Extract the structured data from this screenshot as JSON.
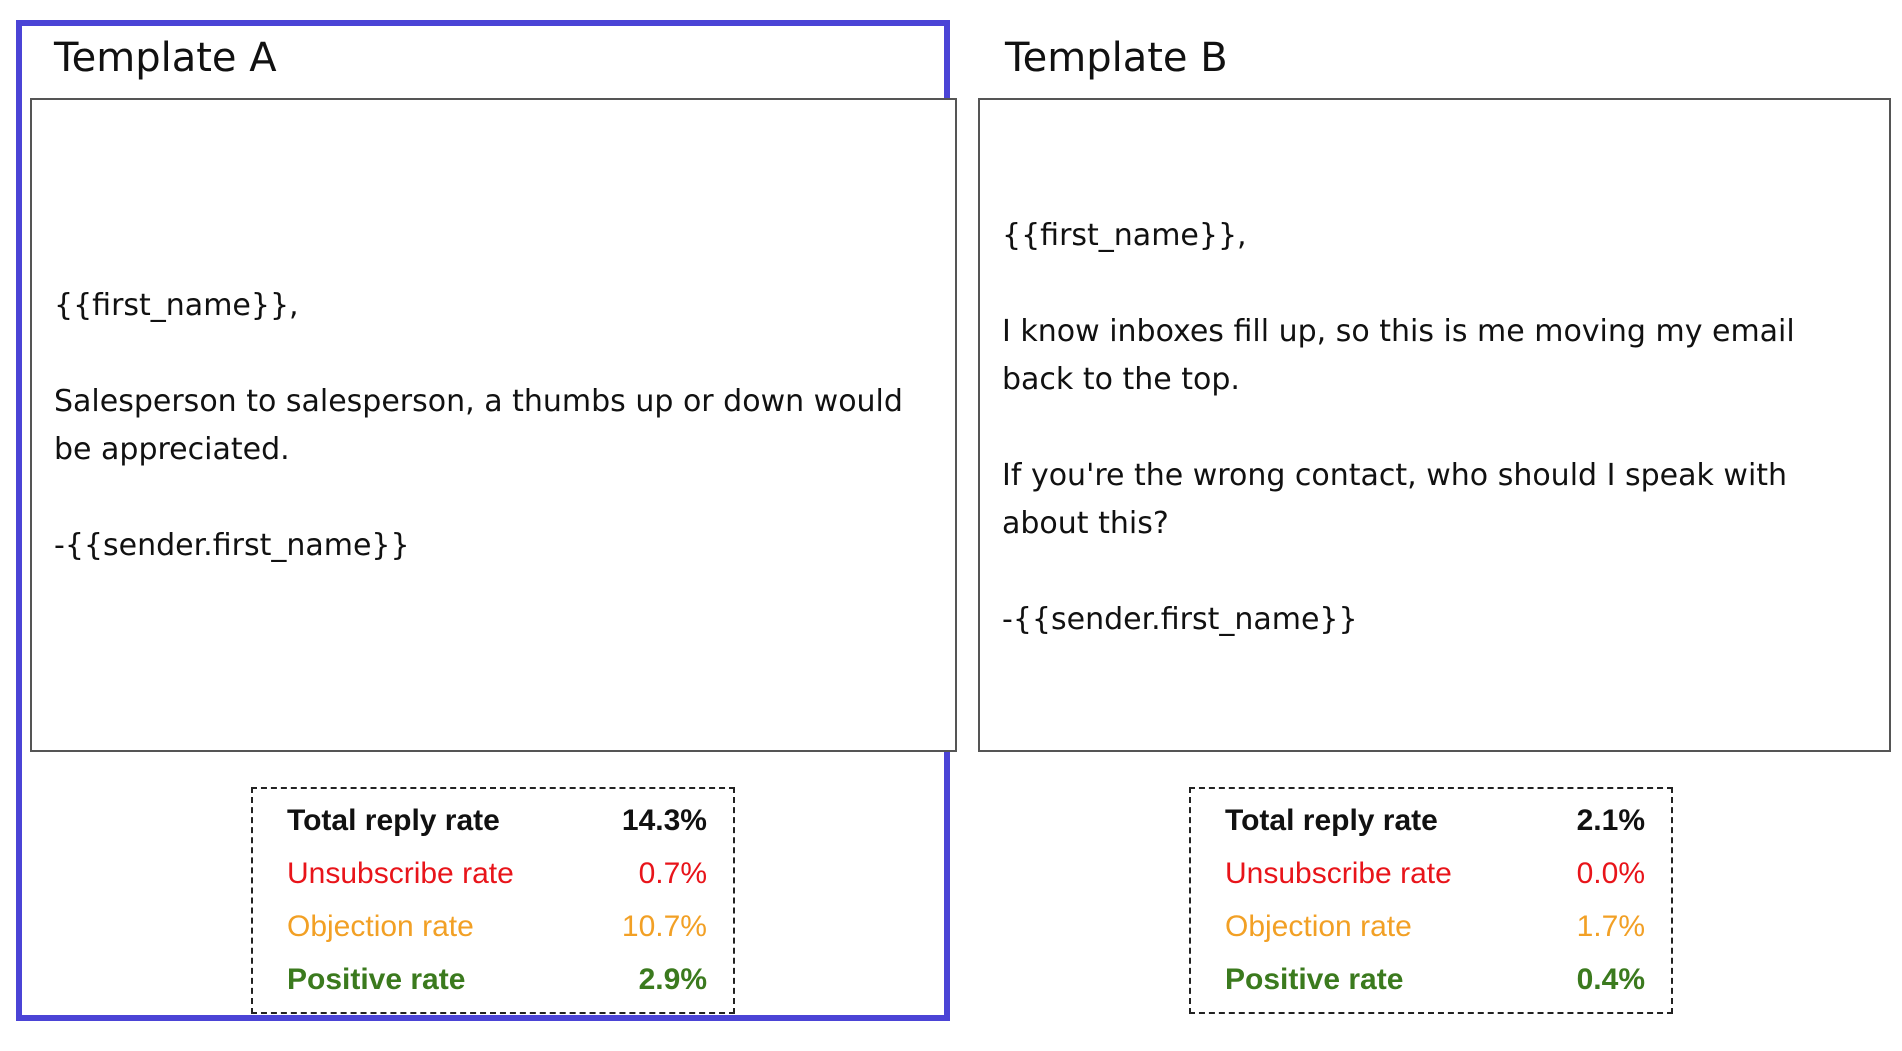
{
  "colors": {
    "selection": "#4b44d6",
    "total": "#111111",
    "unsubscribe": "#e8141a",
    "objection": "#f2a025",
    "positive": "#3b7a1e"
  },
  "templates": [
    {
      "title": "Template A",
      "selected": true,
      "body": {
        "greeting": "{{first_name}},",
        "paragraphs": [
          "Salesperson to salesperson, a thumbs up or down would be appreciated."
        ],
        "signature": "-{{sender.first_name}}"
      },
      "stats": {
        "total": {
          "label": "Total reply rate",
          "value": "14.3%"
        },
        "unsubscribe": {
          "label": "Unsubscribe rate",
          "value": "0.7%"
        },
        "objection": {
          "label": "Objection rate",
          "value": "10.7%"
        },
        "positive": {
          "label": "Positive rate",
          "value": "2.9%"
        }
      }
    },
    {
      "title": "Template B",
      "selected": false,
      "body": {
        "greeting": "{{first_name}},",
        "paragraphs": [
          "I know inboxes fill up, so this is me moving my email back to the top.",
          "If you're the wrong contact, who should I speak with about this?"
        ],
        "signature": "-{{sender.first_name}}"
      },
      "stats": {
        "total": {
          "label": "Total reply rate",
          "value": "2.1%"
        },
        "unsubscribe": {
          "label": "Unsubscribe rate",
          "value": "0.0%"
        },
        "objection": {
          "label": "Objection rate",
          "value": "1.7%"
        },
        "positive": {
          "label": "Positive rate",
          "value": "0.4%"
        }
      }
    }
  ]
}
